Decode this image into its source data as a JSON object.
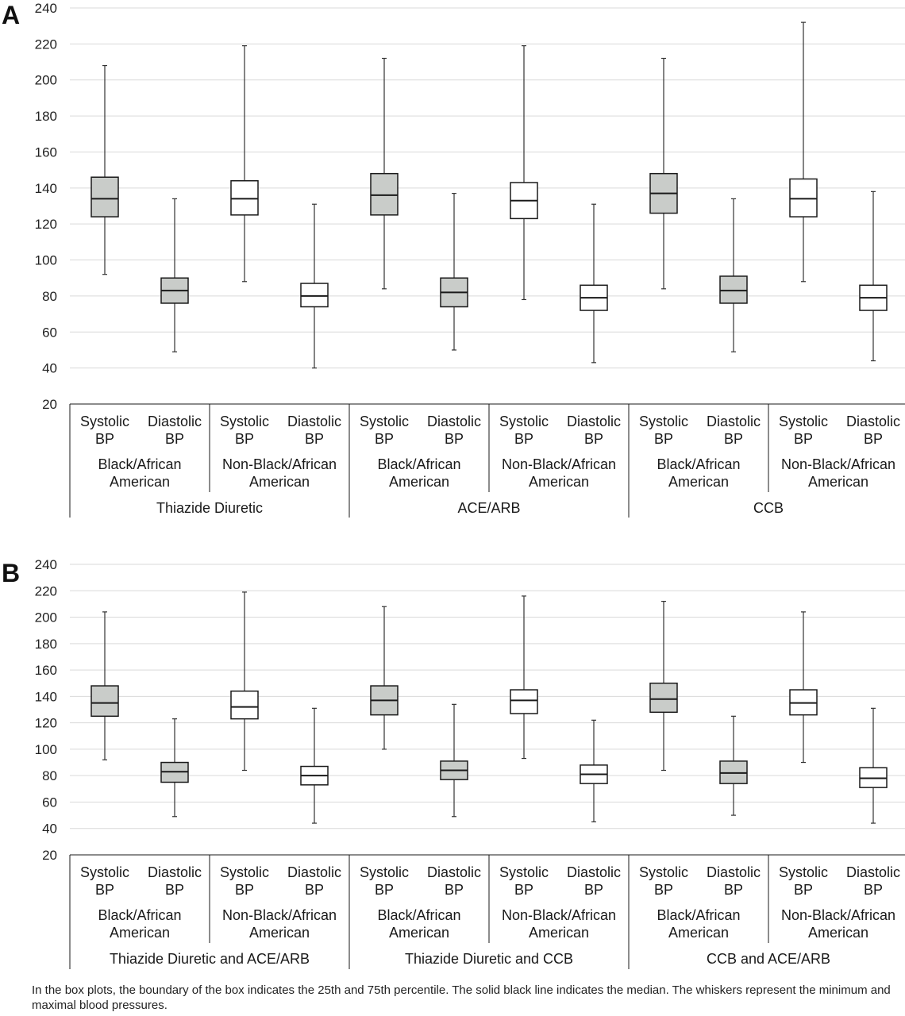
{
  "caption": "In the box plots, the boundary of the box indicates the 25th and 75th percentile. The solid black line indicates the median. The whiskers represent the minimum and maximal blood pressures.",
  "colors": {
    "black_african_american_box": "#c9ccc9",
    "non_black_box": "#ffffff",
    "grid": "#d9d9d9",
    "stroke": "#1a1a1a"
  },
  "chart_data": [
    {
      "type": "box",
      "panel": "A",
      "ylim": [
        20,
        240
      ],
      "yticks": [
        20,
        40,
        60,
        80,
        100,
        120,
        140,
        160,
        180,
        200,
        220,
        240
      ],
      "grid": true,
      "groups": [
        "Thiazide Diuretic",
        "ACE/ARB",
        "CCB"
      ],
      "subgroups": [
        "Black/African American",
        "Non-Black/African American"
      ],
      "measures": [
        "Systolic BP",
        "Diastolic BP"
      ],
      "boxes": [
        {
          "group": "Thiazide Diuretic",
          "subgroup": "Black/African American",
          "measure": "Systolic BP",
          "min": 92,
          "q1": 124,
          "median": 134,
          "q3": 146,
          "max": 208
        },
        {
          "group": "Thiazide Diuretic",
          "subgroup": "Black/African American",
          "measure": "Diastolic BP",
          "min": 49,
          "q1": 76,
          "median": 83,
          "q3": 90,
          "max": 134
        },
        {
          "group": "Thiazide Diuretic",
          "subgroup": "Non-Black/African American",
          "measure": "Systolic BP",
          "min": 88,
          "q1": 125,
          "median": 134,
          "q3": 144,
          "max": 219
        },
        {
          "group": "Thiazide Diuretic",
          "subgroup": "Non-Black/African American",
          "measure": "Diastolic BP",
          "min": 40,
          "q1": 74,
          "median": 80,
          "q3": 87,
          "max": 131
        },
        {
          "group": "ACE/ARB",
          "subgroup": "Black/African American",
          "measure": "Systolic BP",
          "min": 84,
          "q1": 125,
          "median": 136,
          "q3": 148,
          "max": 212
        },
        {
          "group": "ACE/ARB",
          "subgroup": "Black/African American",
          "measure": "Diastolic BP",
          "min": 50,
          "q1": 74,
          "median": 82,
          "q3": 90,
          "max": 137
        },
        {
          "group": "ACE/ARB",
          "subgroup": "Non-Black/African American",
          "measure": "Systolic BP",
          "min": 78,
          "q1": 123,
          "median": 133,
          "q3": 143,
          "max": 219
        },
        {
          "group": "ACE/ARB",
          "subgroup": "Non-Black/African American",
          "measure": "Diastolic BP",
          "min": 43,
          "q1": 72,
          "median": 79,
          "q3": 86,
          "max": 131
        },
        {
          "group": "CCB",
          "subgroup": "Black/African American",
          "measure": "Systolic BP",
          "min": 84,
          "q1": 126,
          "median": 137,
          "q3": 148,
          "max": 212
        },
        {
          "group": "CCB",
          "subgroup": "Black/African American",
          "measure": "Diastolic BP",
          "min": 49,
          "q1": 76,
          "median": 83,
          "q3": 91,
          "max": 134
        },
        {
          "group": "CCB",
          "subgroup": "Non-Black/African American",
          "measure": "Systolic BP",
          "min": 88,
          "q1": 124,
          "median": 134,
          "q3": 145,
          "max": 232
        },
        {
          "group": "CCB",
          "subgroup": "Non-Black/African American",
          "measure": "Diastolic BP",
          "min": 44,
          "q1": 72,
          "median": 79,
          "q3": 86,
          "max": 138
        }
      ]
    },
    {
      "type": "box",
      "panel": "B",
      "ylim": [
        20,
        240
      ],
      "yticks": [
        20,
        40,
        60,
        80,
        100,
        120,
        140,
        160,
        180,
        200,
        220,
        240
      ],
      "grid": true,
      "groups": [
        "Thiazide Diuretic and ACE/ARB",
        "Thiazide Diuretic and CCB",
        "CCB and ACE/ARB"
      ],
      "subgroups": [
        "Black/African American",
        "Non-Black/African American"
      ],
      "measures": [
        "Systolic BP",
        "Diastolic BP"
      ],
      "boxes": [
        {
          "group": "Thiazide Diuretic and ACE/ARB",
          "subgroup": "Black/African American",
          "measure": "Systolic BP",
          "min": 92,
          "q1": 125,
          "median": 135,
          "q3": 148,
          "max": 204
        },
        {
          "group": "Thiazide Diuretic and ACE/ARB",
          "subgroup": "Black/African American",
          "measure": "Diastolic BP",
          "min": 49,
          "q1": 75,
          "median": 83,
          "q3": 90,
          "max": 123
        },
        {
          "group": "Thiazide Diuretic and ACE/ARB",
          "subgroup": "Non-Black/African American",
          "measure": "Systolic BP",
          "min": 84,
          "q1": 123,
          "median": 132,
          "q3": 144,
          "max": 219
        },
        {
          "group": "Thiazide Diuretic and ACE/ARB",
          "subgroup": "Non-Black/African American",
          "measure": "Diastolic BP",
          "min": 44,
          "q1": 73,
          "median": 80,
          "q3": 87,
          "max": 131
        },
        {
          "group": "Thiazide Diuretic and CCB",
          "subgroup": "Black/African American",
          "measure": "Systolic BP",
          "min": 100,
          "q1": 126,
          "median": 137,
          "q3": 148,
          "max": 208
        },
        {
          "group": "Thiazide Diuretic and CCB",
          "subgroup": "Black/African American",
          "measure": "Diastolic BP",
          "min": 49,
          "q1": 77,
          "median": 84,
          "q3": 91,
          "max": 134
        },
        {
          "group": "Thiazide Diuretic and CCB",
          "subgroup": "Non-Black/African American",
          "measure": "Systolic BP",
          "min": 93,
          "q1": 127,
          "median": 137,
          "q3": 145,
          "max": 216
        },
        {
          "group": "Thiazide Diuretic and CCB",
          "subgroup": "Non-Black/African American",
          "measure": "Diastolic BP",
          "min": 45,
          "q1": 74,
          "median": 81,
          "q3": 88,
          "max": 122
        },
        {
          "group": "CCB and ACE/ARB",
          "subgroup": "Black/African American",
          "measure": "Systolic BP",
          "min": 84,
          "q1": 128,
          "median": 138,
          "q3": 150,
          "max": 212
        },
        {
          "group": "CCB and ACE/ARB",
          "subgroup": "Black/African American",
          "measure": "Diastolic BP",
          "min": 50,
          "q1": 74,
          "median": 82,
          "q3": 91,
          "max": 125
        },
        {
          "group": "CCB and ACE/ARB",
          "subgroup": "Non-Black/African American",
          "measure": "Systolic BP",
          "min": 90,
          "q1": 126,
          "median": 135,
          "q3": 145,
          "max": 204
        },
        {
          "group": "CCB and ACE/ARB",
          "subgroup": "Non-Black/African American",
          "measure": "Diastolic BP",
          "min": 44,
          "q1": 71,
          "median": 78,
          "q3": 86,
          "max": 131
        }
      ]
    }
  ]
}
